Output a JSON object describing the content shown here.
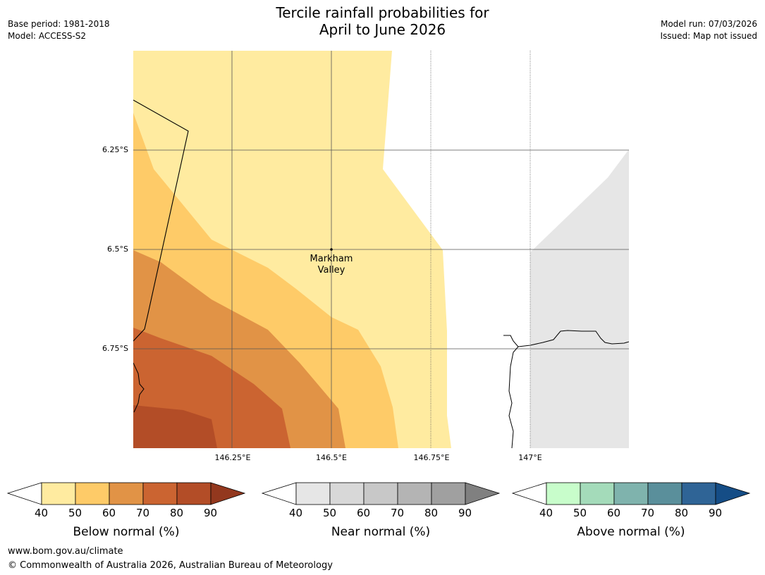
{
  "header": {
    "title_line1": "Tercile rainfall probabilities for",
    "title_line2": "April to June 2026",
    "base_period": "Base period: 1981-2018",
    "model": "Model: ACCESS-S2",
    "model_run": "Model run: 07/03/2026",
    "issued": "Issued: Map not issued"
  },
  "map": {
    "lat_labels": [
      "6.25°S",
      "6.5°S",
      "6.75°S"
    ],
    "lon_labels": [
      "146.25°E",
      "146.5°E",
      "146.75°E",
      "147°E"
    ],
    "place": {
      "name_line1": "Markham",
      "name_line2": "Valley"
    }
  },
  "legends": [
    {
      "name": "Below normal (%)",
      "ticks": [
        "40",
        "50",
        "60",
        "70",
        "80",
        "90"
      ],
      "colors": [
        "#ffeba0",
        "#fecb68",
        "#e19346",
        "#cb6431",
        "#b34d27",
        "#93381e"
      ]
    },
    {
      "name": "Near normal (%)",
      "ticks": [
        "40",
        "50",
        "60",
        "70",
        "80",
        "90"
      ],
      "colors": [
        "#e6e6e6",
        "#d8d8d8",
        "#c8c8c8",
        "#b4b4b4",
        "#a0a0a0",
        "#808080"
      ]
    },
    {
      "name": "Above normal (%)",
      "ticks": [
        "40",
        "50",
        "60",
        "70",
        "80",
        "90"
      ],
      "colors": [
        "#c8fdcb",
        "#a4dbba",
        "#7fb3ad",
        "#5a8f9b",
        "#2f6496",
        "#154d86"
      ]
    }
  ],
  "footer": {
    "url": "www.bom.gov.au/climate",
    "copyright": "© Commonwealth of Australia 2026, Australian Bureau of Meteorology"
  }
}
